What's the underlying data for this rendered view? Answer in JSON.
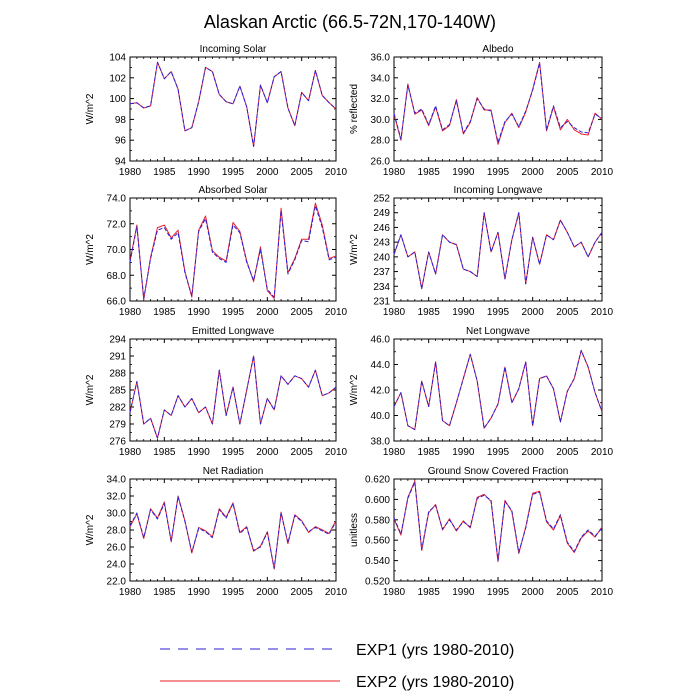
{
  "figure_title": "Alaskan Arctic (66.5-72N,170-140W)",
  "legend": {
    "entries": [
      {
        "label": "EXP1 (yrs 1980-2010)",
        "color": "#2b1fd6",
        "dash": true
      },
      {
        "label": "EXP2 (yrs 1980-2010)",
        "color": "#e8212a",
        "dash": false
      }
    ]
  },
  "chart_data": [
    {
      "type": "line",
      "title": "Incoming Solar",
      "xlabel": "",
      "ylabel": "W/m^2",
      "xlim": [
        1980,
        2010
      ],
      "ylim": [
        94,
        104
      ],
      "xticks": [
        1980,
        1985,
        1990,
        1995,
        2000,
        2005,
        2010
      ],
      "yticks": [
        94,
        96,
        98,
        100,
        102,
        104
      ],
      "ytick_labels": [
        "94",
        "96",
        "98",
        "100",
        "102",
        "104"
      ],
      "x": [
        1980,
        1981,
        1982,
        1983,
        1984,
        1985,
        1986,
        1987,
        1988,
        1989,
        1990,
        1991,
        1992,
        1993,
        1994,
        1995,
        1996,
        1997,
        1998,
        1999,
        2000,
        2001,
        2002,
        2003,
        2004,
        2005,
        2006,
        2007,
        2008,
        2009,
        2010
      ],
      "series": [
        {
          "name": "EXP1 (yrs 1980-2010)",
          "values": [
            99.5,
            99.6,
            99.1,
            99.3,
            103.5,
            101.9,
            102.6,
            100.9,
            96.9,
            97.2,
            99.7,
            103.0,
            102.6,
            100.4,
            99.7,
            99.5,
            101.2,
            99.2,
            95.4,
            101.3,
            99.6,
            102.1,
            102.6,
            99.1,
            97.4,
            100.6,
            99.8,
            102.7,
            100.3,
            99.6,
            99.0
          ]
        },
        {
          "name": "EXP2 (yrs 1980-2010)",
          "values": [
            99.5,
            99.6,
            99.1,
            99.3,
            103.5,
            101.9,
            102.6,
            100.9,
            96.9,
            97.2,
            99.7,
            103.0,
            102.6,
            100.4,
            99.7,
            99.5,
            101.2,
            99.2,
            95.4,
            101.3,
            99.6,
            102.1,
            102.6,
            99.1,
            97.4,
            100.6,
            99.8,
            102.7,
            100.3,
            99.6,
            99.0
          ]
        }
      ]
    },
    {
      "type": "line",
      "title": "Albedo",
      "xlabel": "",
      "ylabel": "% reflected",
      "xlim": [
        1980,
        2010
      ],
      "ylim": [
        26,
        36
      ],
      "xticks": [
        1980,
        1985,
        1990,
        1995,
        2000,
        2005,
        2010
      ],
      "yticks": [
        26,
        28,
        30,
        32,
        34,
        36
      ],
      "ytick_labels": [
        "26.0",
        "28.0",
        "30.0",
        "32.0",
        "34.0",
        "36.0"
      ],
      "x": [
        1980,
        1981,
        1982,
        1983,
        1984,
        1985,
        1986,
        1987,
        1988,
        1989,
        1990,
        1991,
        1992,
        1993,
        1994,
        1995,
        1996,
        1997,
        1998,
        1999,
        2000,
        2001,
        2002,
        2003,
        2004,
        2005,
        2006,
        2007,
        2008,
        2009,
        2010
      ],
      "series": [
        {
          "name": "EXP1 (yrs 1980-2010)",
          "values": [
            30.6,
            28.1,
            33.3,
            30.6,
            31.0,
            29.5,
            31.3,
            29.0,
            29.5,
            31.8,
            28.7,
            29.8,
            32.0,
            31.0,
            30.8,
            27.8,
            29.8,
            30.5,
            29.3,
            30.8,
            32.8,
            35.4,
            29.0,
            31.3,
            29.2,
            29.8,
            29.2,
            28.8,
            28.7,
            30.5,
            30.1
          ]
        },
        {
          "name": "EXP2 (yrs 1980-2010)",
          "values": [
            30.5,
            28.0,
            33.4,
            30.5,
            30.9,
            29.4,
            31.2,
            28.9,
            29.4,
            31.9,
            28.6,
            29.7,
            32.1,
            30.9,
            30.9,
            27.6,
            29.7,
            30.6,
            29.2,
            30.7,
            32.9,
            35.5,
            28.9,
            31.2,
            29.0,
            30.0,
            29.0,
            28.6,
            28.5,
            30.6,
            30.0
          ]
        }
      ]
    },
    {
      "type": "line",
      "title": "Absorbed Solar",
      "xlabel": "",
      "ylabel": "W/m^2",
      "xlim": [
        1980,
        2010
      ],
      "ylim": [
        66,
        74
      ],
      "xticks": [
        1980,
        1985,
        1990,
        1995,
        2000,
        2005,
        2010
      ],
      "yticks": [
        66,
        68,
        70,
        72,
        74
      ],
      "ytick_labels": [
        "66.0",
        "68.0",
        "70.0",
        "72.0",
        "74.0"
      ],
      "x": [
        1980,
        1981,
        1982,
        1983,
        1984,
        1985,
        1986,
        1987,
        1988,
        1989,
        1990,
        1991,
        1992,
        1993,
        1994,
        1995,
        1996,
        1997,
        1998,
        1999,
        2000,
        2001,
        2002,
        2003,
        2004,
        2005,
        2006,
        2007,
        2008,
        2009,
        2010
      ],
      "series": [
        {
          "name": "EXP1 (yrs 1980-2010)",
          "values": [
            69.0,
            71.8,
            66.2,
            69.3,
            71.5,
            71.7,
            70.8,
            71.3,
            68.2,
            66.4,
            71.4,
            72.4,
            69.8,
            69.3,
            69.0,
            71.9,
            71.3,
            69.0,
            67.6,
            70.0,
            66.9,
            66.3,
            73.0,
            68.1,
            69.2,
            70.7,
            70.6,
            73.4,
            71.7,
            69.2,
            69.4
          ]
        },
        {
          "name": "EXP2 (yrs 1980-2010)",
          "values": [
            69.1,
            71.9,
            66.1,
            69.4,
            71.7,
            71.9,
            70.9,
            71.5,
            68.3,
            66.3,
            71.5,
            72.6,
            69.9,
            69.4,
            69.1,
            72.1,
            71.4,
            69.1,
            67.5,
            70.2,
            66.8,
            66.2,
            73.2,
            68.2,
            69.3,
            70.8,
            70.8,
            73.6,
            71.9,
            69.3,
            69.5
          ]
        }
      ]
    },
    {
      "type": "line",
      "title": "Incoming Longwave",
      "xlabel": "",
      "ylabel": "W/m^2",
      "xlim": [
        1980,
        2010
      ],
      "ylim": [
        231,
        252
      ],
      "xticks": [
        1980,
        1985,
        1990,
        1995,
        2000,
        2005,
        2010
      ],
      "yticks": [
        231,
        234,
        237,
        240,
        243,
        246,
        249,
        252
      ],
      "ytick_labels": [
        "231",
        "234",
        "237",
        "240",
        "243",
        "246",
        "249",
        "252"
      ],
      "x": [
        1980,
        1981,
        1982,
        1983,
        1984,
        1985,
        1986,
        1987,
        1988,
        1989,
        1990,
        1991,
        1992,
        1993,
        1994,
        1995,
        1996,
        1997,
        1998,
        1999,
        2000,
        2001,
        2002,
        2003,
        2004,
        2005,
        2006,
        2007,
        2008,
        2009,
        2010
      ],
      "series": [
        {
          "name": "EXP1 (yrs 1980-2010)",
          "values": [
            240.5,
            244.5,
            240.0,
            241.0,
            233.5,
            241.0,
            236.5,
            244.5,
            243.0,
            242.5,
            237.5,
            237.0,
            236.0,
            249.0,
            241.0,
            245.0,
            235.5,
            243.5,
            249.0,
            234.5,
            244.0,
            238.5,
            244.5,
            243.5,
            247.5,
            245.0,
            242.0,
            243.0,
            240.0,
            243.0,
            245.0
          ]
        },
        {
          "name": "EXP2 (yrs 1980-2010)",
          "values": [
            240.5,
            244.5,
            240.0,
            241.0,
            233.5,
            241.0,
            236.5,
            244.5,
            243.0,
            242.5,
            237.5,
            237.0,
            236.0,
            249.0,
            241.0,
            245.0,
            235.5,
            243.5,
            249.0,
            234.5,
            244.0,
            238.5,
            244.5,
            243.5,
            247.5,
            245.0,
            242.0,
            243.0,
            240.0,
            243.0,
            245.0
          ]
        }
      ]
    },
    {
      "type": "line",
      "title": "Emitted Longwave",
      "xlabel": "",
      "ylabel": "W/m^2",
      "xlim": [
        1980,
        2010
      ],
      "ylim": [
        276,
        294
      ],
      "xticks": [
        1980,
        1985,
        1990,
        1995,
        2000,
        2005,
        2010
      ],
      "yticks": [
        276,
        279,
        282,
        285,
        288,
        291,
        294
      ],
      "ytick_labels": [
        "276",
        "279",
        "282",
        "285",
        "288",
        "291",
        "294"
      ],
      "x": [
        1980,
        1981,
        1982,
        1983,
        1984,
        1985,
        1986,
        1987,
        1988,
        1989,
        1990,
        1991,
        1992,
        1993,
        1994,
        1995,
        1996,
        1997,
        1998,
        1999,
        2000,
        2001,
        2002,
        2003,
        2004,
        2005,
        2006,
        2007,
        2008,
        2009,
        2010
      ],
      "series": [
        {
          "name": "EXP1 (yrs 1980-2010)",
          "values": [
            281.0,
            286.5,
            279.0,
            280.0,
            276.5,
            281.5,
            280.5,
            284.0,
            282.0,
            283.5,
            281.0,
            282.0,
            279.0,
            288.5,
            280.5,
            285.5,
            279.0,
            285.0,
            291.0,
            279.0,
            283.5,
            281.5,
            287.5,
            286.0,
            287.5,
            287.0,
            285.5,
            288.5,
            284.0,
            284.5,
            285.5
          ]
        },
        {
          "name": "EXP2 (yrs 1980-2010)",
          "values": [
            281.0,
            286.5,
            279.0,
            280.0,
            276.5,
            281.5,
            280.5,
            284.0,
            282.0,
            283.5,
            281.0,
            282.0,
            279.0,
            288.5,
            280.5,
            285.5,
            279.0,
            285.0,
            291.0,
            279.0,
            283.5,
            281.5,
            287.5,
            286.0,
            287.5,
            287.0,
            285.5,
            288.5,
            284.0,
            284.5,
            285.5
          ]
        }
      ]
    },
    {
      "type": "line",
      "title": "Net Longwave",
      "xlabel": "",
      "ylabel": "W/m^2",
      "xlim": [
        1980,
        2010
      ],
      "ylim": [
        38,
        46
      ],
      "xticks": [
        1980,
        1985,
        1990,
        1995,
        2000,
        2005,
        2010
      ],
      "yticks": [
        38,
        40,
        42,
        44,
        46
      ],
      "ytick_labels": [
        "38.0",
        "40.0",
        "42.0",
        "44.0",
        "46.0"
      ],
      "x": [
        1980,
        1981,
        1982,
        1983,
        1984,
        1985,
        1986,
        1987,
        1988,
        1989,
        1990,
        1991,
        1992,
        1993,
        1994,
        1995,
        1996,
        1997,
        1998,
        1999,
        2000,
        2001,
        2002,
        2003,
        2004,
        2005,
        2006,
        2007,
        2008,
        2009,
        2010
      ],
      "series": [
        {
          "name": "EXP1 (yrs 1980-2010)",
          "values": [
            40.7,
            41.8,
            39.2,
            38.9,
            42.7,
            40.7,
            44.2,
            39.6,
            39.2,
            41.0,
            42.9,
            44.8,
            42.7,
            39.0,
            39.8,
            40.9,
            43.8,
            41.0,
            42.1,
            44.2,
            39.2,
            42.9,
            43.1,
            42.1,
            39.5,
            41.9,
            42.9,
            45.1,
            43.8,
            41.8,
            40.3
          ]
        },
        {
          "name": "EXP2 (yrs 1980-2010)",
          "values": [
            40.7,
            41.8,
            39.2,
            38.9,
            42.7,
            40.7,
            44.2,
            39.6,
            39.2,
            41.0,
            42.9,
            44.8,
            42.7,
            39.0,
            39.8,
            40.9,
            43.8,
            41.0,
            42.1,
            44.2,
            39.2,
            42.9,
            43.1,
            42.1,
            39.5,
            41.9,
            42.9,
            45.1,
            43.8,
            41.8,
            40.3
          ]
        }
      ]
    },
    {
      "type": "line",
      "title": "Net Radiation",
      "xlabel": "",
      "ylabel": "W/m^2",
      "xlim": [
        1980,
        2010
      ],
      "ylim": [
        22,
        34
      ],
      "xticks": [
        1980,
        1985,
        1990,
        1995,
        2000,
        2005,
        2010
      ],
      "yticks": [
        22,
        24,
        26,
        28,
        30,
        32,
        34
      ],
      "ytick_labels": [
        "22.0",
        "24.0",
        "26.0",
        "28.0",
        "30.0",
        "32.0",
        "34.0"
      ],
      "x": [
        1980,
        1981,
        1982,
        1983,
        1984,
        1985,
        1986,
        1987,
        1988,
        1989,
        1990,
        1991,
        1992,
        1993,
        1994,
        1995,
        1996,
        1997,
        1998,
        1999,
        2000,
        2001,
        2002,
        2003,
        2004,
        2005,
        2006,
        2007,
        2008,
        2009,
        2010
      ],
      "series": [
        {
          "name": "EXP1 (yrs 1980-2010)",
          "values": [
            28.5,
            30.0,
            27.1,
            30.4,
            29.3,
            31.1,
            26.7,
            31.9,
            29.0,
            25.4,
            28.2,
            27.8,
            27.1,
            30.4,
            29.4,
            31.1,
            27.6,
            28.3,
            25.6,
            26.0,
            27.7,
            23.5,
            30.0,
            26.5,
            29.7,
            29.0,
            27.8,
            28.3,
            27.9,
            27.5,
            29.0
          ]
        },
        {
          "name": "EXP2 (yrs 1980-2010)",
          "values": [
            28.4,
            29.9,
            27.0,
            30.5,
            29.4,
            31.3,
            26.6,
            32.0,
            29.1,
            25.3,
            28.3,
            27.9,
            27.2,
            30.5,
            29.5,
            31.2,
            27.7,
            28.4,
            25.5,
            26.1,
            27.8,
            23.4,
            30.1,
            26.4,
            29.8,
            29.1,
            27.7,
            28.4,
            28.0,
            27.6,
            29.1
          ]
        }
      ]
    },
    {
      "type": "line",
      "title": "Ground Snow Covered Fraction",
      "xlabel": "",
      "ylabel": "unitless",
      "xlim": [
        1980,
        2010
      ],
      "ylim": [
        0.52,
        0.62
      ],
      "xticks": [
        1980,
        1985,
        1990,
        1995,
        2000,
        2005,
        2010
      ],
      "yticks": [
        0.52,
        0.54,
        0.56,
        0.58,
        0.6,
        0.62
      ],
      "ytick_labels": [
        "0.520",
        "0.540",
        "0.560",
        "0.580",
        "0.600",
        "0.620"
      ],
      "x": [
        1980,
        1981,
        1982,
        1983,
        1984,
        1985,
        1986,
        1987,
        1988,
        1989,
        1990,
        1991,
        1992,
        1993,
        1994,
        1995,
        1996,
        1997,
        1998,
        1999,
        2000,
        2001,
        2002,
        2003,
        2004,
        2005,
        2006,
        2007,
        2008,
        2009,
        2010
      ],
      "series": [
        {
          "name": "EXP1 (yrs 1980-2010)",
          "values": [
            0.582,
            0.566,
            0.601,
            0.617,
            0.551,
            0.588,
            0.594,
            0.571,
            0.58,
            0.57,
            0.578,
            0.573,
            0.601,
            0.604,
            0.599,
            0.54,
            0.598,
            0.589,
            0.548,
            0.572,
            0.605,
            0.607,
            0.579,
            0.571,
            0.585,
            0.558,
            0.549,
            0.563,
            0.57,
            0.564,
            0.572
          ]
        },
        {
          "name": "EXP2 (yrs 1980-2010)",
          "values": [
            0.581,
            0.565,
            0.602,
            0.618,
            0.55,
            0.587,
            0.595,
            0.57,
            0.581,
            0.569,
            0.579,
            0.572,
            0.602,
            0.605,
            0.598,
            0.539,
            0.599,
            0.588,
            0.547,
            0.573,
            0.606,
            0.608,
            0.578,
            0.57,
            0.584,
            0.557,
            0.548,
            0.562,
            0.569,
            0.563,
            0.573
          ]
        }
      ]
    }
  ]
}
